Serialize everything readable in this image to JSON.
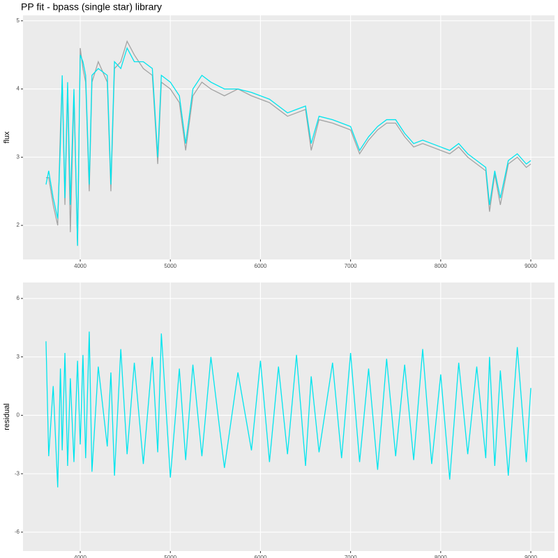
{
  "chart_data": [
    {
      "type": "line",
      "title": "PP fit - bpass (single star) library",
      "y_label": "flux",
      "x": [
        3620,
        3650,
        3700,
        3750,
        3780,
        3800,
        3830,
        3860,
        3890,
        3930,
        3970,
        4000,
        4030,
        4060,
        4100,
        4130,
        4200,
        4300,
        4340,
        4380,
        4450,
        4520,
        4600,
        4700,
        4800,
        4860,
        4900,
        5000,
        5100,
        5170,
        5250,
        5350,
        5450,
        5600,
        5750,
        5900,
        6000,
        6100,
        6200,
        6300,
        6400,
        6500,
        6563,
        6650,
        6800,
        6900,
        7000,
        7100,
        7200,
        7300,
        7400,
        7500,
        7600,
        7700,
        7800,
        7900,
        8000,
        8100,
        8200,
        8300,
        8400,
        8500,
        8542,
        8600,
        8662,
        8750,
        8850,
        8950,
        9000
      ],
      "series": [
        {
          "color": "#a3a3a3",
          "values": [
            2.7,
            2.7,
            2.3,
            2.0,
            3.4,
            4.1,
            2.3,
            4.0,
            1.9,
            3.9,
            1.7,
            4.6,
            4.3,
            4.1,
            2.5,
            4.1,
            4.4,
            4.1,
            2.5,
            4.3,
            4.4,
            4.7,
            4.5,
            4.3,
            4.2,
            2.9,
            4.1,
            4.0,
            3.8,
            3.1,
            3.9,
            4.1,
            4.0,
            3.9,
            4.0,
            3.9,
            3.85,
            3.8,
            3.7,
            3.6,
            3.65,
            3.7,
            3.1,
            3.55,
            3.5,
            3.45,
            3.4,
            3.05,
            3.25,
            3.4,
            3.5,
            3.5,
            3.3,
            3.15,
            3.2,
            3.15,
            3.1,
            3.05,
            3.15,
            3.0,
            2.9,
            2.8,
            2.2,
            2.75,
            2.3,
            2.9,
            3.0,
            2.85,
            2.9
          ]
        },
        {
          "color": "#00e5ee",
          "values": [
            2.6,
            2.8,
            2.4,
            2.1,
            3.2,
            4.2,
            2.4,
            4.1,
            2.3,
            4.0,
            1.7,
            4.5,
            4.4,
            4.2,
            2.6,
            4.2,
            4.3,
            4.2,
            2.6,
            4.4,
            4.3,
            4.6,
            4.4,
            4.4,
            4.3,
            3.0,
            4.2,
            4.1,
            3.9,
            3.2,
            4.0,
            4.2,
            4.1,
            4.0,
            4.0,
            3.95,
            3.9,
            3.85,
            3.75,
            3.65,
            3.7,
            3.75,
            3.2,
            3.6,
            3.55,
            3.5,
            3.45,
            3.1,
            3.3,
            3.45,
            3.55,
            3.55,
            3.35,
            3.2,
            3.25,
            3.2,
            3.15,
            3.1,
            3.2,
            3.05,
            2.95,
            2.85,
            2.3,
            2.8,
            2.4,
            2.95,
            3.05,
            2.9,
            2.95
          ]
        }
      ],
      "xlim": [
        3365,
        9263
      ],
      "xticks": [
        4000,
        5000,
        6000,
        7000,
        8000,
        9000
      ],
      "ylim": [
        1.5,
        5.08
      ],
      "yticks": [
        2,
        3,
        4,
        5
      ],
      "grid": true
    },
    {
      "type": "line",
      "y_label": "residual",
      "x": [
        3620,
        3650,
        3700,
        3750,
        3780,
        3800,
        3830,
        3860,
        3890,
        3930,
        3970,
        4000,
        4030,
        4060,
        4100,
        4130,
        4200,
        4300,
        4340,
        4380,
        4450,
        4520,
        4600,
        4700,
        4800,
        4860,
        4900,
        5000,
        5100,
        5170,
        5250,
        5350,
        5450,
        5600,
        5750,
        5900,
        6000,
        6100,
        6200,
        6300,
        6400,
        6500,
        6563,
        6650,
        6800,
        6900,
        7000,
        7100,
        7200,
        7300,
        7400,
        7500,
        7600,
        7700,
        7800,
        7900,
        8000,
        8100,
        8200,
        8300,
        8400,
        8500,
        8542,
        8600,
        8662,
        8750,
        8850,
        8950,
        9000
      ],
      "series": [
        {
          "color": "#00e5ee",
          "values": [
            3.8,
            -2.1,
            1.5,
            -3.7,
            2.4,
            -1.8,
            3.2,
            -2.6,
            1.9,
            -2.4,
            2.8,
            -1.5,
            3.1,
            -2.2,
            4.3,
            -2.9,
            2.5,
            -1.6,
            2.2,
            -3.1,
            3.4,
            -2.0,
            2.7,
            -2.5,
            3.0,
            -1.9,
            4.2,
            -3.2,
            2.4,
            -2.3,
            2.6,
            -2.1,
            3.0,
            -2.7,
            2.2,
            -1.8,
            2.8,
            -2.4,
            2.5,
            -2.0,
            3.1,
            -2.6,
            2.0,
            -1.9,
            2.7,
            -2.2,
            3.2,
            -2.4,
            2.4,
            -2.8,
            2.9,
            -2.1,
            2.6,
            -2.3,
            3.4,
            -2.5,
            2.1,
            -3.3,
            2.7,
            -2.0,
            2.5,
            -2.2,
            3.0,
            -2.6,
            2.3,
            -3.1,
            3.5,
            -2.4,
            1.4
          ]
        }
      ],
      "xlim": [
        3365,
        9263
      ],
      "xticks": [
        4000,
        5000,
        6000,
        7000,
        8000,
        9000
      ],
      "ylim": [
        -6.97,
        6.82
      ],
      "yticks": [
        -6,
        -3,
        0,
        3,
        6
      ],
      "grid": true
    }
  ]
}
